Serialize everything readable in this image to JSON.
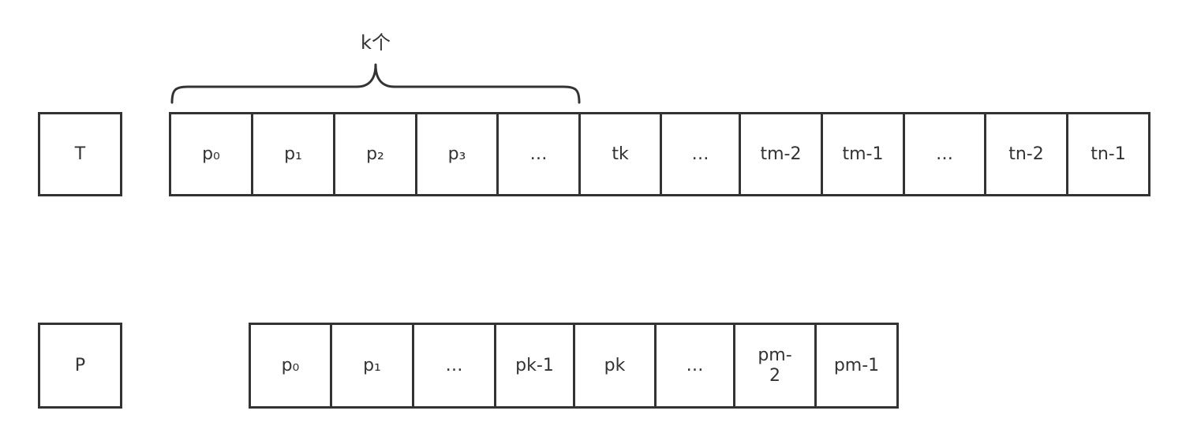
{
  "row_t": {
    "label": "T",
    "cells": [
      "p₀",
      "p₁",
      "p₂",
      "p₃",
      "…",
      "tk",
      "…",
      "tm-2",
      "tm-1",
      "…",
      "tn-2",
      "tn-1"
    ]
  },
  "row_p": {
    "label": "P",
    "cells": [
      "p₀",
      "p₁",
      "…",
      "pk-1",
      "pk",
      "…",
      "pm-\n2",
      "pm-1"
    ]
  },
  "brace": {
    "label": "k个"
  },
  "colors": {
    "stroke": "#333333",
    "background": "#ffffff"
  }
}
